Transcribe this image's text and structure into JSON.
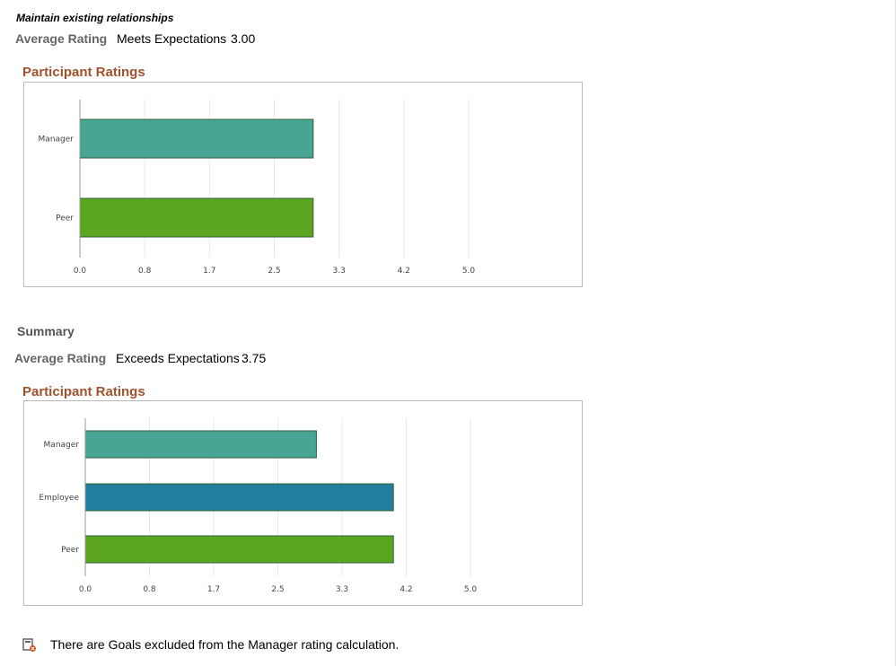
{
  "section1": {
    "goal_title": "Maintain existing relationships",
    "avg_label": "Average Rating",
    "avg_text": "Meets Expectations",
    "avg_value": "3.00",
    "chart_title": "Participant Ratings"
  },
  "section2": {
    "heading": "Summary",
    "avg_label": "Average Rating",
    "avg_text": "Exceeds Expectations",
    "avg_value": "3.75",
    "chart_title": "Participant Ratings"
  },
  "note": {
    "icon": "goal-excluded-icon",
    "text": "There are Goals excluded from the Manager rating calculation."
  },
  "chart_data": [
    {
      "type": "bar",
      "orientation": "horizontal",
      "title": "Participant Ratings",
      "categories": [
        "Manager",
        "Peer"
      ],
      "values": [
        3.0,
        3.0
      ],
      "colors": [
        "#48a593",
        "#5ca51e"
      ],
      "xlim": [
        0,
        5
      ],
      "ticks": [
        "0.0",
        "0.8",
        "1.7",
        "2.5",
        "3.3",
        "4.2",
        "5.0"
      ],
      "grid": true
    },
    {
      "type": "bar",
      "orientation": "horizontal",
      "title": "Participant Ratings",
      "categories": [
        "Manager",
        "Employee",
        "Peer"
      ],
      "values": [
        3.0,
        4.0,
        4.0
      ],
      "colors": [
        "#48a593",
        "#227e9e",
        "#5ca51e"
      ],
      "xlim": [
        0,
        5
      ],
      "ticks": [
        "0.0",
        "0.8",
        "1.7",
        "2.5",
        "3.3",
        "4.2",
        "5.0"
      ],
      "grid": true
    }
  ]
}
